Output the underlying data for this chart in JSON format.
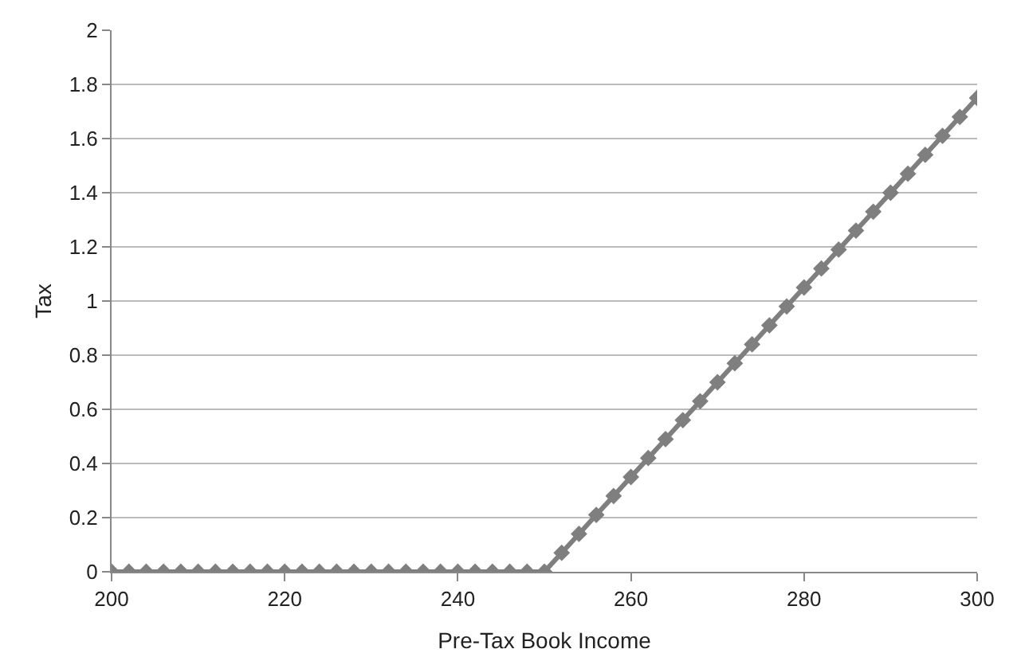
{
  "chart_data": {
    "type": "line",
    "xlabel": "Pre-Tax Book Income",
    "ylabel": "Tax",
    "x": [
      200,
      202,
      204,
      206,
      208,
      210,
      212,
      214,
      216,
      218,
      220,
      222,
      224,
      226,
      228,
      230,
      232,
      234,
      236,
      238,
      240,
      242,
      244,
      246,
      248,
      250,
      252,
      254,
      256,
      258,
      260,
      262,
      264,
      266,
      268,
      270,
      272,
      274,
      276,
      278,
      280,
      282,
      284,
      286,
      288,
      290,
      292,
      294,
      296,
      298,
      300
    ],
    "series": [
      {
        "color": "#7f7f7f",
        "values": [
          0,
          0,
          0,
          0,
          0,
          0,
          0,
          0,
          0,
          0,
          0,
          0,
          0,
          0,
          0,
          0,
          0,
          0,
          0,
          0,
          0,
          0,
          0,
          0,
          0,
          0,
          0.07,
          0.14,
          0.21,
          0.28,
          0.35,
          0.42,
          0.49,
          0.56,
          0.63,
          0.7,
          0.77,
          0.84,
          0.91,
          0.98,
          1.05,
          1.12,
          1.19,
          1.26,
          1.33,
          1.4,
          1.47,
          1.54,
          1.61,
          1.68,
          1.75
        ]
      }
    ],
    "xlim": [
      200,
      300
    ],
    "xticks": [
      200,
      220,
      240,
      260,
      280,
      300
    ],
    "ylim": [
      0,
      2
    ],
    "yticks": [
      0,
      0.2,
      0.4,
      0.6,
      0.8,
      1,
      1.2,
      1.4,
      1.6,
      1.8,
      2
    ],
    "grid": "y",
    "marker": "diamond",
    "line_style": "solid"
  }
}
